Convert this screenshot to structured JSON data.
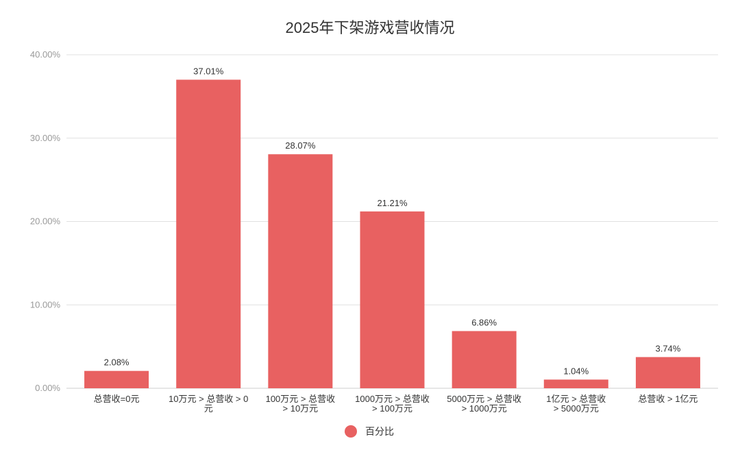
{
  "chart_data": {
    "type": "bar",
    "title": "2025年下架游戏营收情况",
    "categories": [
      [
        "总营收=0元"
      ],
      [
        "10万元 > 总营收 > 0",
        "元"
      ],
      [
        "100万元 > 总营收",
        "> 10万元"
      ],
      [
        "1000万元 > 总营收",
        "> 100万元"
      ],
      [
        "5000万元 > 总营收",
        "> 1000万元"
      ],
      [
        "1亿元 > 总营收",
        "> 5000万元"
      ],
      [
        "总营收 > 1亿元"
      ]
    ],
    "series": [
      {
        "name": "百分比",
        "values": [
          2.08,
          37.01,
          28.07,
          21.21,
          6.86,
          1.04,
          3.74
        ],
        "labels": [
          "2.08%",
          "37.01%",
          "28.07%",
          "21.21%",
          "6.86%",
          "1.04%",
          "3.74%"
        ]
      }
    ],
    "ylim": [
      0,
      40
    ],
    "yticks": [
      0,
      10,
      20,
      30,
      40
    ],
    "ytick_labels": [
      "0.00%",
      "10.00%",
      "20.00%",
      "30.00%",
      "40.00%"
    ],
    "grid": true,
    "legend_position": "bottom",
    "colors": {
      "bar": "#e86161",
      "grid": "#e0e0e0",
      "text": "#333333",
      "axis_text": "#999999"
    }
  }
}
